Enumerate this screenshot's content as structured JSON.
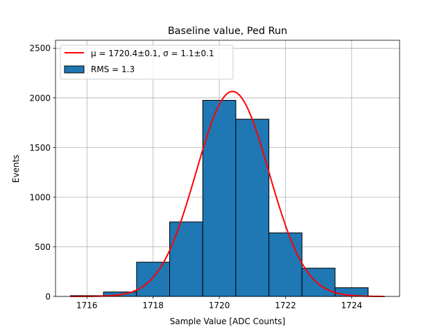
{
  "chart_data": {
    "type": "bar",
    "title": "Baseline value, Ped Run",
    "xlabel": "Sample Value [ADC Counts]",
    "ylabel": "Events",
    "xlim": [
      1715.05,
      1725.45
    ],
    "ylim": [
      0,
      2580
    ],
    "grid": true,
    "legend_position": "top-left",
    "x_ticks": [
      1716,
      1718,
      1720,
      1722,
      1724
    ],
    "y_ticks": [
      0,
      500,
      1000,
      1500,
      2000,
      2500
    ],
    "bar_color": "#1f77b4",
    "bar_edge_color": "#000000",
    "fit_color": "#ff0000",
    "bins": [
      {
        "left": 1715.5,
        "right": 1716.5,
        "count": 8
      },
      {
        "left": 1716.5,
        "right": 1717.5,
        "count": 45
      },
      {
        "left": 1717.5,
        "right": 1718.5,
        "count": 345
      },
      {
        "left": 1718.5,
        "right": 1719.5,
        "count": 750
      },
      {
        "left": 1719.5,
        "right": 1720.5,
        "count": 1975
      },
      {
        "left": 1720.5,
        "right": 1721.5,
        "count": 1785
      },
      {
        "left": 1721.5,
        "right": 1722.5,
        "count": 640
      },
      {
        "left": 1722.5,
        "right": 1723.5,
        "count": 285
      },
      {
        "left": 1723.5,
        "right": 1724.5,
        "count": 88
      }
    ],
    "fit": {
      "mu": 1720.4,
      "sigma": 1.1,
      "amplitude": 2065,
      "x_range": [
        1715.5,
        1725.0
      ]
    },
    "legend": [
      {
        "kind": "line",
        "label": "μ = 1720.4±0.1, σ = 1.1±0.1"
      },
      {
        "kind": "patch",
        "label": "RMS = 1.3"
      }
    ]
  }
}
